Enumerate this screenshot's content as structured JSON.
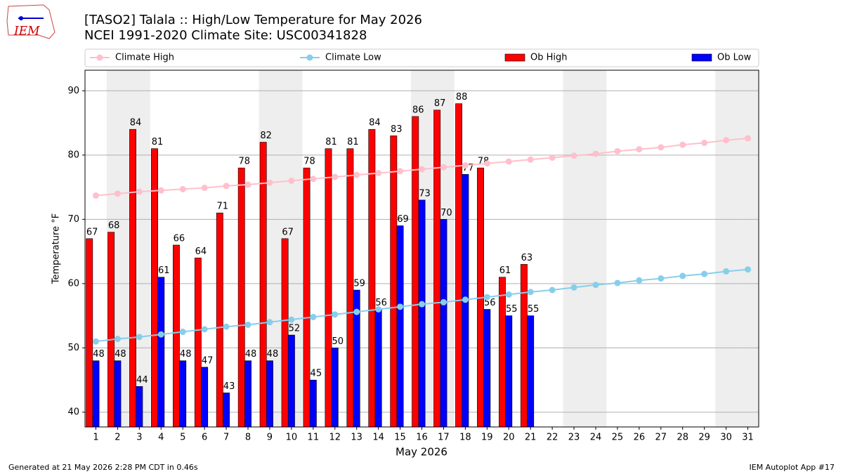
{
  "chart_data": {
    "type": "bar",
    "title": "[TASO2] Talala :: High/Low Temperature for May 2026",
    "subtitle": "NCEI 1991-2020 Climate Site: USC00341828",
    "logo_text": "IEM",
    "xlabel": "May 2026",
    "ylabel": "Temperature °F",
    "footer_left": "Generated at 21 May 2026 2:28 PM CDT in 0.46s",
    "footer_right": "IEM Autoplot App #17",
    "categories": [
      1,
      2,
      3,
      4,
      5,
      6,
      7,
      8,
      9,
      10,
      11,
      12,
      13,
      14,
      15,
      16,
      17,
      18,
      19,
      20,
      21,
      22,
      23,
      24,
      25,
      26,
      27,
      28,
      29,
      30,
      31
    ],
    "weekend_days": [
      2,
      3,
      9,
      10,
      16,
      17,
      23,
      24,
      30,
      31
    ],
    "ylim": [
      37.7,
      93.2
    ],
    "yticks": [
      40,
      50,
      60,
      70,
      80,
      90
    ],
    "grid": true,
    "series": [
      {
        "name": "Climate High",
        "type": "line",
        "color": "#ffc0cb",
        "values": [
          73.7,
          74.0,
          74.3,
          74.5,
          74.7,
          74.9,
          75.2,
          75.4,
          75.7,
          76.0,
          76.3,
          76.6,
          76.9,
          77.2,
          77.5,
          77.8,
          78.1,
          78.4,
          78.7,
          79.0,
          79.3,
          79.6,
          79.9,
          80.2,
          80.6,
          80.9,
          81.2,
          81.6,
          81.9,
          82.3,
          82.6
        ]
      },
      {
        "name": "Climate Low",
        "type": "line",
        "color": "#87ceeb",
        "values": [
          51.0,
          51.4,
          51.7,
          52.1,
          52.5,
          52.9,
          53.3,
          53.6,
          54.0,
          54.4,
          54.8,
          55.2,
          55.6,
          56.0,
          56.4,
          56.8,
          57.1,
          57.5,
          57.9,
          58.3,
          58.7,
          59.0,
          59.4,
          59.8,
          60.1,
          60.5,
          60.8,
          61.2,
          61.5,
          61.9,
          62.2
        ]
      },
      {
        "name": "Ob High",
        "type": "bar",
        "color": "#ff0000",
        "values": [
          67,
          68,
          84,
          81,
          66,
          64,
          71,
          78,
          82,
          67,
          78,
          81,
          81,
          84,
          83,
          86,
          87,
          88,
          78,
          61,
          63,
          null,
          null,
          null,
          null,
          null,
          null,
          null,
          null,
          null,
          null
        ]
      },
      {
        "name": "Ob Low",
        "type": "bar",
        "color": "#0000ff",
        "values": [
          48,
          48,
          44,
          61,
          48,
          47,
          43,
          48,
          48,
          52,
          45,
          50,
          59,
          56,
          69,
          73,
          70,
          77,
          56,
          55,
          55,
          null,
          null,
          null,
          null,
          null,
          null,
          null,
          null,
          null,
          null
        ]
      }
    ]
  }
}
